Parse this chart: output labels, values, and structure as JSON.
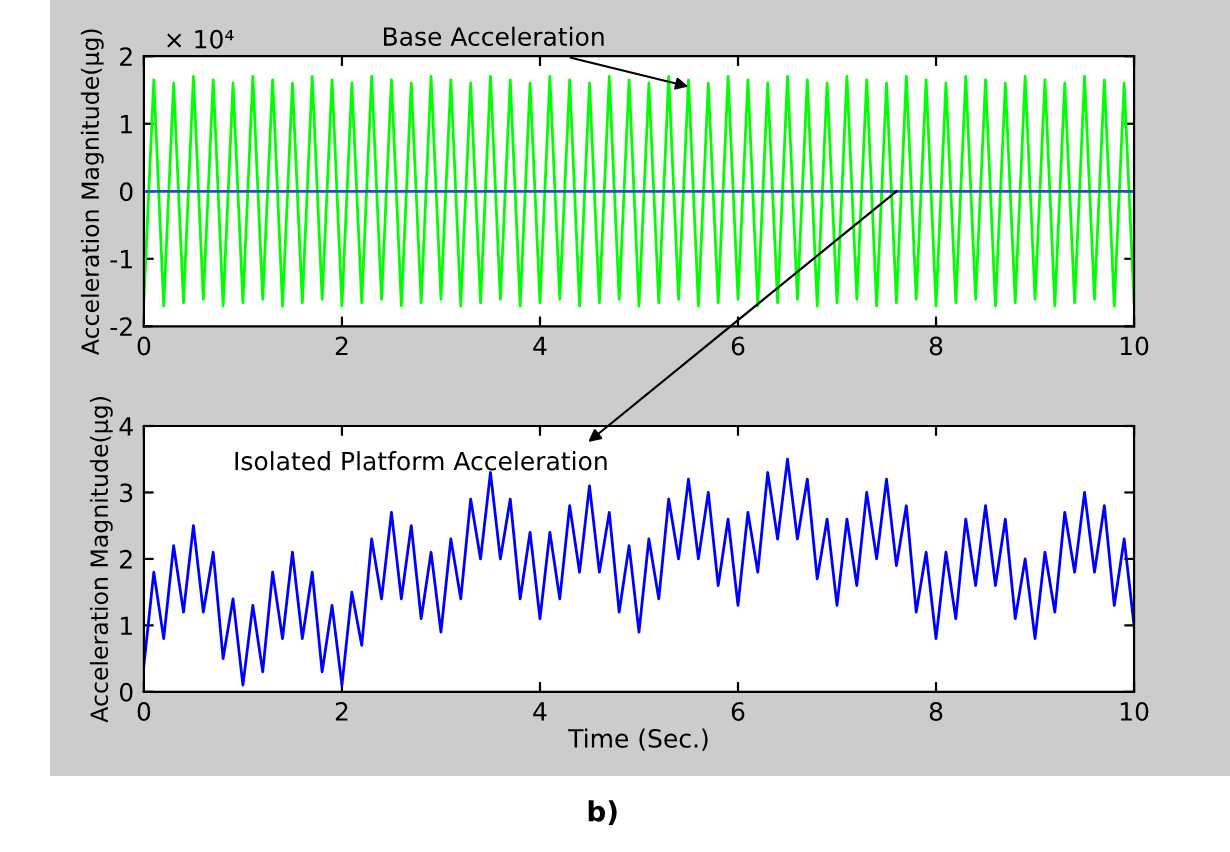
{
  "chart_data": [
    {
      "type": "line",
      "ylabel": "Acceleration Magnitude(μg)",
      "xlim": [
        0,
        10
      ],
      "xticks": [
        0,
        2,
        4,
        6,
        8,
        10
      ],
      "ylim": [
        -2,
        2
      ],
      "yticks": [
        -2,
        -1,
        0,
        1,
        2
      ],
      "x": [
        0,
        0.1,
        0.2,
        0.3,
        0.4,
        0.5,
        0.6,
        0.7,
        0.8,
        0.9,
        1,
        1.1,
        1.2,
        1.3,
        1.4,
        1.5,
        1.6,
        1.7,
        1.8,
        1.9,
        2,
        2.1,
        2.2,
        2.3,
        2.4,
        2.5,
        2.6,
        2.7,
        2.8,
        2.9,
        3,
        3.1,
        3.2,
        3.3,
        3.4,
        3.5,
        3.6,
        3.7,
        3.8,
        3.9,
        4,
        4.1,
        4.2,
        4.3,
        4.4,
        4.5,
        4.6,
        4.7,
        4.8,
        4.9,
        5,
        5.1,
        5.2,
        5.3,
        5.4,
        5.5,
        5.6,
        5.7,
        5.8,
        5.9,
        6,
        6.1,
        6.2,
        6.3,
        6.4,
        6.5,
        6.6,
        6.7,
        6.8,
        6.9,
        7,
        7.1,
        7.2,
        7.3,
        7.4,
        7.5,
        7.6,
        7.7,
        7.8,
        7.9,
        8,
        8.1,
        8.2,
        8.3,
        8.4,
        8.5,
        8.6,
        8.7,
        8.8,
        8.9,
        9,
        9.1,
        9.2,
        9.3,
        9.4,
        9.5,
        9.6,
        9.7,
        9.8,
        9.9,
        10
      ],
      "series": [
        {
          "color": "#00ff00",
          "values": [
            -1.6,
            1.65,
            -1.7,
            1.6,
            -1.65,
            1.7,
            -1.6,
            1.65,
            -1.7,
            1.6,
            -1.65,
            1.7,
            -1.6,
            1.65,
            -1.7,
            1.6,
            -1.65,
            1.7,
            -1.6,
            1.65,
            -1.7,
            1.6,
            -1.65,
            1.7,
            -1.6,
            1.65,
            -1.7,
            1.6,
            -1.65,
            1.7,
            -1.6,
            1.65,
            -1.7,
            1.6,
            -1.65,
            1.7,
            -1.6,
            1.65,
            -1.7,
            1.6,
            -1.65,
            1.7,
            -1.6,
            1.65,
            -1.7,
            1.6,
            -1.65,
            1.7,
            -1.6,
            1.65,
            -1.7,
            1.6,
            -1.65,
            1.7,
            -1.6,
            1.65,
            -1.7,
            1.6,
            -1.65,
            1.7,
            -1.6,
            1.65,
            -1.7,
            1.6,
            -1.65,
            1.7,
            -1.6,
            1.65,
            -1.7,
            1.6,
            -1.65,
            1.7,
            -1.6,
            1.65,
            -1.7,
            1.6,
            -1.65,
            1.7,
            -1.6,
            1.65,
            -1.7,
            1.6,
            -1.65,
            1.7,
            -1.6,
            1.65,
            -1.7,
            1.6,
            -1.65,
            1.7,
            -1.6,
            1.65,
            -1.7,
            1.6,
            -1.65,
            1.7,
            -1.6,
            1.65,
            -1.7,
            1.6,
            -1.65
          ]
        },
        {
          "color": "#1f4fbf",
          "x": [
            0,
            10
          ],
          "values": [
            0,
            0
          ]
        }
      ],
      "annotations": [
        "× 10⁴",
        {
          "text": "Base Acceleration",
          "x": 5.5,
          "y": 1.55
        },
        {
          "text": "Isolated Platform Acceleration",
          "x": 7.6,
          "y": 0
        }
      ]
    },
    {
      "type": "line",
      "xlabel": "Time (Sec.)",
      "ylabel": "Acceleration Magnitude(μg)",
      "xlim": [
        0,
        10
      ],
      "xticks": [
        0,
        2,
        4,
        6,
        8,
        10
      ],
      "ylim": [
        0,
        4
      ],
      "yticks": [
        0,
        1,
        2,
        3,
        4
      ],
      "x": [
        0,
        0.1,
        0.2,
        0.3,
        0.4,
        0.5,
        0.6,
        0.7,
        0.8,
        0.9,
        1,
        1.1,
        1.2,
        1.3,
        1.4,
        1.5,
        1.6,
        1.7,
        1.8,
        1.9,
        2,
        2.1,
        2.2,
        2.3,
        2.4,
        2.5,
        2.6,
        2.7,
        2.8,
        2.9,
        3,
        3.1,
        3.2,
        3.3,
        3.4,
        3.5,
        3.6,
        3.7,
        3.8,
        3.9,
        4,
        4.1,
        4.2,
        4.3,
        4.4,
        4.5,
        4.6,
        4.7,
        4.8,
        4.9,
        5,
        5.1,
        5.2,
        5.3,
        5.4,
        5.5,
        5.6,
        5.7,
        5.8,
        5.9,
        6,
        6.1,
        6.2,
        6.3,
        6.4,
        6.5,
        6.6,
        6.7,
        6.8,
        6.9,
        7,
        7.1,
        7.2,
        7.3,
        7.4,
        7.5,
        7.6,
        7.7,
        7.8,
        7.9,
        8,
        8.1,
        8.2,
        8.3,
        8.4,
        8.5,
        8.6,
        8.7,
        8.8,
        8.9,
        9,
        9.1,
        9.2,
        9.3,
        9.4,
        9.5,
        9.6,
        9.7,
        9.8,
        9.9,
        10
      ],
      "series": [
        {
          "color": "#0000ff",
          "values": [
            0.4,
            1.8,
            0.8,
            2.2,
            1.2,
            2.5,
            1.2,
            2.1,
            0.5,
            1.4,
            0.1,
            1.3,
            0.3,
            1.8,
            0.8,
            2.1,
            0.8,
            1.8,
            0.3,
            1.3,
            0.1,
            1.5,
            0.7,
            2.3,
            1.4,
            2.7,
            1.4,
            2.5,
            1.1,
            2.1,
            0.9,
            2.3,
            1.4,
            2.9,
            2.0,
            3.3,
            2.0,
            2.9,
            1.4,
            2.4,
            1.1,
            2.4,
            1.4,
            2.8,
            1.8,
            3.1,
            1.8,
            2.7,
            1.2,
            2.2,
            0.9,
            2.3,
            1.4,
            2.9,
            2.0,
            3.2,
            2.0,
            3.0,
            1.6,
            2.6,
            1.3,
            2.7,
            1.8,
            3.3,
            2.3,
            3.5,
            2.3,
            3.2,
            1.7,
            2.6,
            1.3,
            2.6,
            1.6,
            3.0,
            2.0,
            3.2,
            1.9,
            2.8,
            1.2,
            2.1,
            0.8,
            2.1,
            1.1,
            2.6,
            1.6,
            2.8,
            1.6,
            2.6,
            1.1,
            2.0,
            0.8,
            2.1,
            1.2,
            2.7,
            1.8,
            3.0,
            1.8,
            2.8,
            1.3,
            2.3,
            1.0
          ]
        }
      ],
      "annotations": [
        "b)"
      ]
    }
  ]
}
